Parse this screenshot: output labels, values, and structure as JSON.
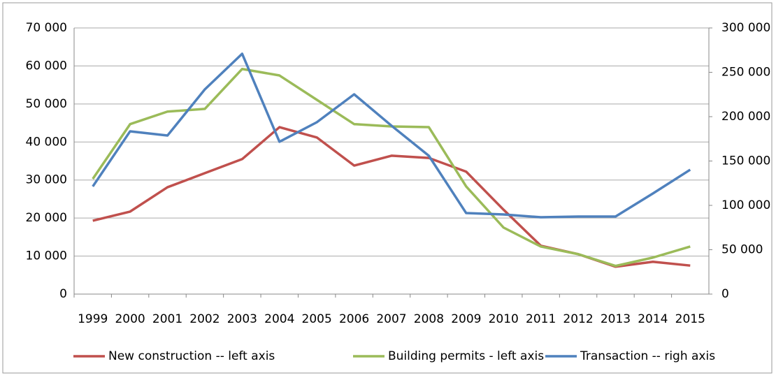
{
  "chart_data": {
    "type": "line",
    "categories": [
      "1999",
      "2000",
      "2001",
      "2002",
      "2003",
      "2004",
      "2005",
      "2006",
      "2007",
      "2008",
      "2009",
      "2010",
      "2011",
      "2012",
      "2013",
      "2014",
      "2015"
    ],
    "series": [
      {
        "name": "New construction -- left axis",
        "color": "#c0504d",
        "values": [
          19300,
          21700,
          28100,
          31800,
          35500,
          43900,
          41200,
          33800,
          36400,
          35800,
          32200,
          22200,
          12700,
          10500,
          7200,
          8500,
          7500
        ]
      },
      {
        "name": "Building permits - left axis",
        "color": "#9bbb59",
        "values": [
          30300,
          44700,
          48000,
          48700,
          59200,
          57500,
          51100,
          44700,
          44100,
          43900,
          28300,
          17500,
          12500,
          10500,
          7400,
          9600,
          12500
        ]
      },
      {
        "name": "Transaction -- righ axis",
        "color": "#4f81bd",
        "axis": "y2",
        "values": [
          121300,
          183500,
          178700,
          230700,
          270900,
          171700,
          193700,
          225200,
          189800,
          155900,
          91300,
          89800,
          86600,
          87400,
          87400,
          113400,
          140200
        ]
      }
    ],
    "ylim": [
      0,
      70000
    ],
    "yticks": [
      0,
      {
        "value": 10000,
        "label": "10 000"
      },
      {
        "value": 20000,
        "label": "20 000"
      },
      {
        "value": 30000,
        "label": "30 000"
      },
      {
        "value": 40000,
        "label": "40 000"
      },
      {
        "value": 50000,
        "label": "50 000"
      },
      {
        "value": 60000,
        "label": "60 000"
      },
      {
        "value": 70000,
        "label": "70 000"
      }
    ],
    "y2lim": [
      0,
      300000
    ],
    "y2ticks": [
      0,
      {
        "value": 50000,
        "label": "50 000"
      },
      {
        "value": 100000,
        "label": "100 000"
      },
      {
        "value": 150000,
        "label": "150 000"
      },
      {
        "value": 200000,
        "label": "200 000"
      },
      {
        "value": 250000,
        "label": "250 000"
      },
      {
        "value": 300000,
        "label": "300 000"
      }
    ],
    "grid": true,
    "legend": "bottom"
  }
}
